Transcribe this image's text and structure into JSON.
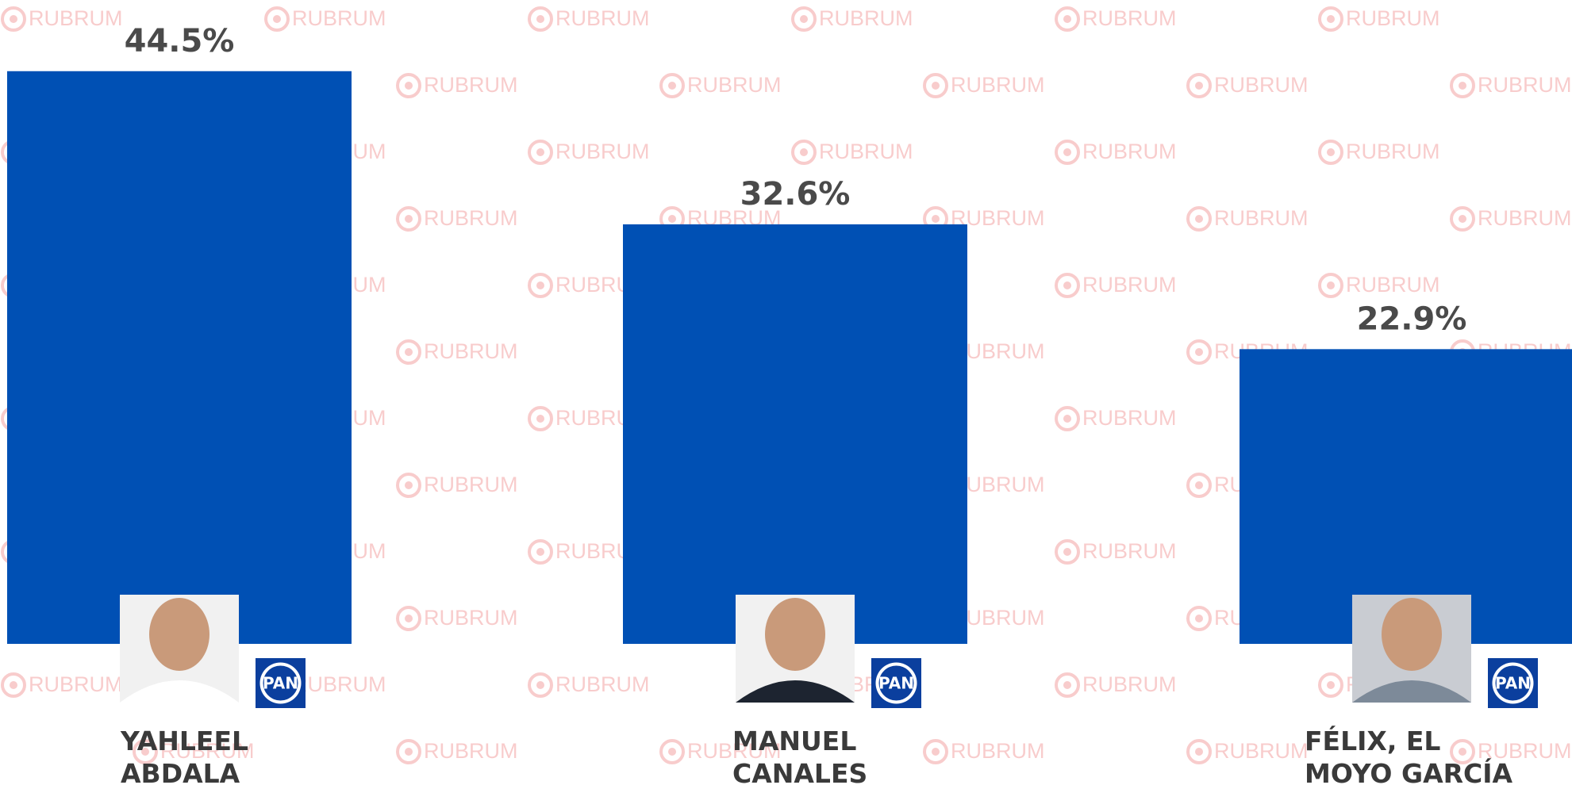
{
  "chart_data": {
    "type": "bar",
    "categories": [
      "YAHLEEL ABDALA",
      "MANUEL CANALES",
      "FÉLIX, EL MOYO GARCÍA"
    ],
    "values": [
      44.5,
      32.6,
      22.9
    ],
    "value_labels": [
      "44.5%",
      "32.6%",
      "22.9%"
    ],
    "color": "#0050b4",
    "party": "PAN",
    "watermark": "RUBRUM"
  }
}
